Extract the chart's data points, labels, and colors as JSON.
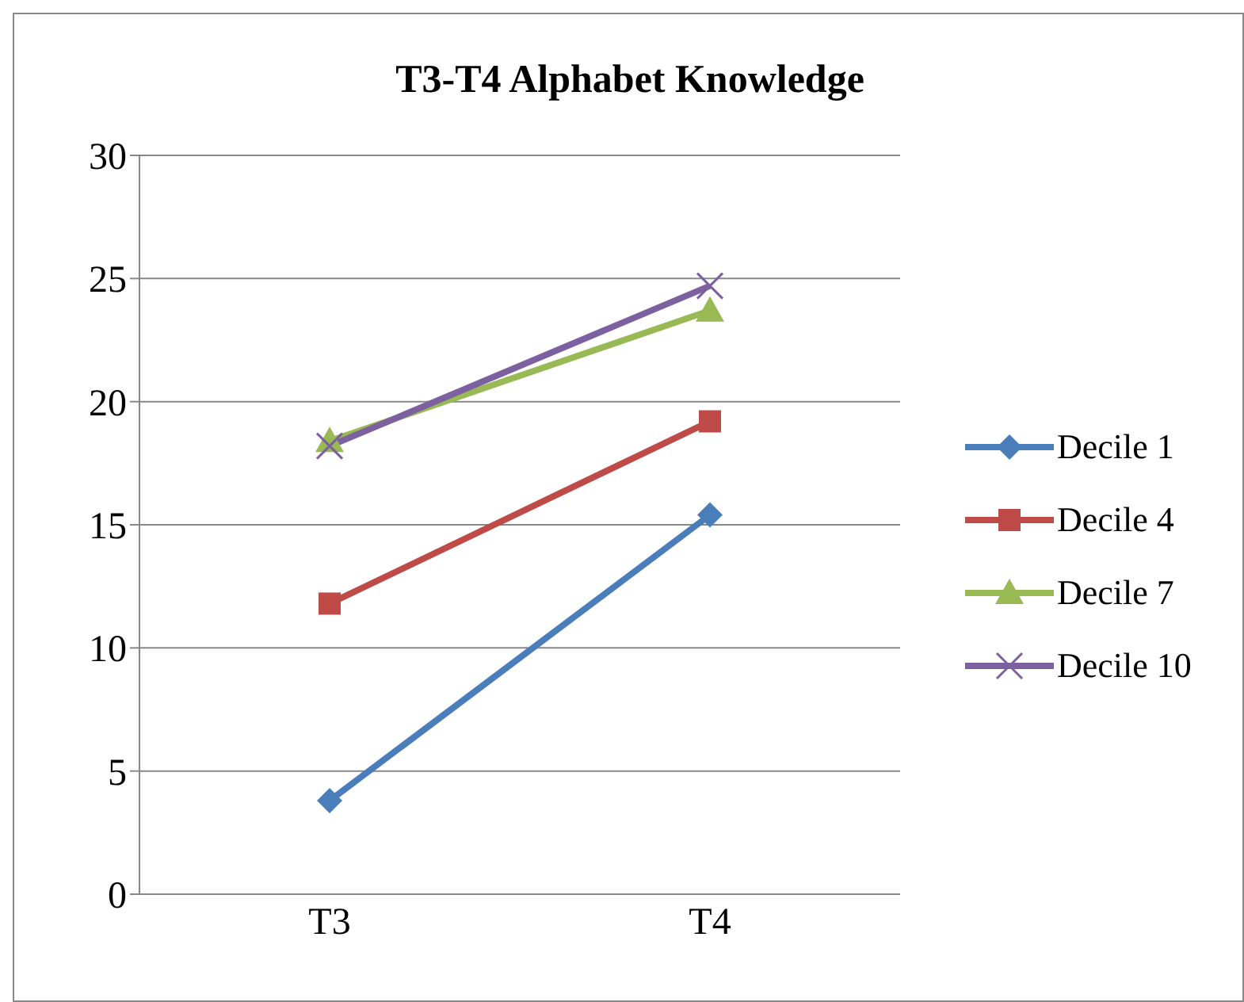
{
  "chart_data": {
    "type": "line",
    "title": "T3-T4 Alphabet Knowledge",
    "categories": [
      "T3",
      "T4"
    ],
    "series": [
      {
        "name": "Decile 1",
        "color": "#4a7ebb",
        "values": [
          3.8,
          15.4
        ],
        "marker": "diamond"
      },
      {
        "name": "Decile 4",
        "color": "#be4b48",
        "values": [
          11.8,
          19.2
        ],
        "marker": "square"
      },
      {
        "name": "Decile 7",
        "color": "#98b954",
        "values": [
          18.4,
          23.7
        ],
        "marker": "triangle"
      },
      {
        "name": "Decile 10",
        "color": "#7d60a0",
        "values": [
          18.2,
          24.7
        ],
        "marker": "cross"
      }
    ],
    "ylim": [
      0,
      30
    ],
    "yticks": [
      0,
      5,
      10,
      15,
      20,
      25,
      30
    ],
    "grid": "y",
    "legend": "right",
    "line_style": "solid"
  }
}
